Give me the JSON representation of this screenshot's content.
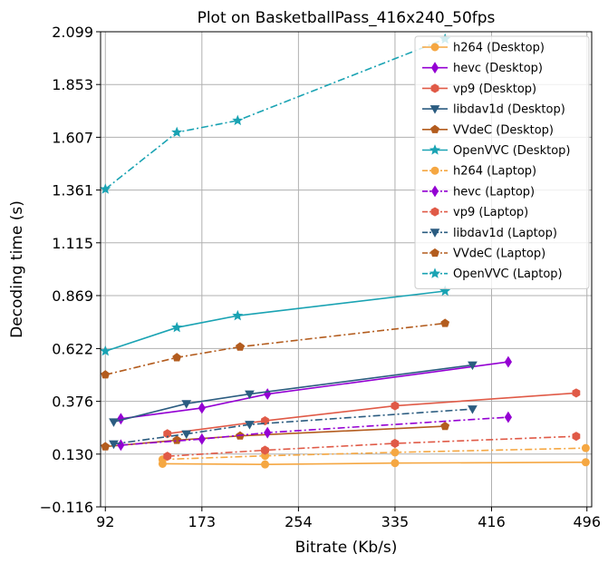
{
  "chart_data": {
    "type": "line",
    "title": "Plot on BasketballPass_416x240_50fps",
    "xlabel": "Bitrate (Kb/s)",
    "ylabel": "Decoding time (s)",
    "xlim": [
      88,
      500
    ],
    "ylim": [
      -0.116,
      2.099
    ],
    "xticks": [
      92,
      173,
      254,
      335,
      416,
      496
    ],
    "xtick_labels": [
      "92",
      "173",
      "254",
      "335",
      "416",
      "496"
    ],
    "yticks": [
      -0.116,
      0.13,
      0.376,
      0.622,
      0.869,
      1.115,
      1.361,
      1.607,
      1.853,
      2.099
    ],
    "ytick_labels": [
      "−0.116",
      "0.130",
      "0.376",
      "0.622",
      "0.869",
      "1.115",
      "1.361",
      "1.607",
      "1.853",
      "2.099"
    ],
    "grid": true,
    "legend_position": "top-right",
    "series": [
      {
        "name": "h264 (Desktop)",
        "color": "#f5a742",
        "marker": "circle",
        "dash": "solid",
        "x": [
          140,
          226,
          335,
          495
        ],
        "y": [
          0.085,
          0.082,
          0.088,
          0.092
        ]
      },
      {
        "name": "hevc (Desktop)",
        "color": "#9400d3",
        "marker": "diamond",
        "dash": "solid",
        "x": [
          105,
          173,
          228,
          430
        ],
        "y": [
          0.295,
          0.345,
          0.41,
          0.56
        ]
      },
      {
        "name": "vp9 (Desktop)",
        "color": "#e05a47",
        "marker": "hexagon",
        "dash": "solid",
        "x": [
          144,
          226,
          335,
          487
        ],
        "y": [
          0.225,
          0.285,
          0.355,
          0.415
        ]
      },
      {
        "name": "libdav1d (Desktop)",
        "color": "#2b5c80",
        "marker": "triangle-down",
        "dash": "solid",
        "x": [
          99,
          160,
          213,
          400
        ],
        "y": [
          0.28,
          0.365,
          0.41,
          0.545
        ]
      },
      {
        "name": "VVdeC (Desktop)",
        "color": "#b35c1e",
        "marker": "pentagon",
        "dash": "solid",
        "x": [
          92,
          152,
          205,
          377
        ],
        "y": [
          0.165,
          0.195,
          0.215,
          0.26
        ]
      },
      {
        "name": "OpenVVC (Desktop)",
        "color": "#1aa3b3",
        "marker": "star",
        "dash": "solid",
        "x": [
          92,
          152,
          203,
          377
        ],
        "y": [
          0.61,
          0.72,
          0.775,
          0.89
        ]
      },
      {
        "name": "h264 (Laptop)",
        "color": "#f5a742",
        "marker": "circle",
        "dash": "dashdot",
        "x": [
          140,
          226,
          335,
          495
        ],
        "y": [
          0.105,
          0.122,
          0.138,
          0.158
        ]
      },
      {
        "name": "hevc (Laptop)",
        "color": "#9400d3",
        "marker": "diamond",
        "dash": "dashdot",
        "x": [
          105,
          173,
          228,
          430
        ],
        "y": [
          0.172,
          0.2,
          0.23,
          0.302
        ]
      },
      {
        "name": "vp9 (Laptop)",
        "color": "#e05a47",
        "marker": "hexagon",
        "dash": "dashdot",
        "x": [
          144,
          226,
          335,
          487
        ],
        "y": [
          0.12,
          0.148,
          0.18,
          0.213
        ]
      },
      {
        "name": "libdav1d (Laptop)",
        "color": "#2b5c80",
        "marker": "triangle-down",
        "dash": "dashdot",
        "x": [
          99,
          160,
          213,
          400
        ],
        "y": [
          0.177,
          0.224,
          0.268,
          0.34
        ]
      },
      {
        "name": "VVdeC (Laptop)",
        "color": "#b35c1e",
        "marker": "pentagon",
        "dash": "dashdot",
        "x": [
          92,
          152,
          205,
          377
        ],
        "y": [
          0.5,
          0.58,
          0.63,
          0.74
        ]
      },
      {
        "name": "OpenVVC (Laptop)",
        "color": "#1aa3b3",
        "marker": "star",
        "dash": "dashdot",
        "x": [
          92,
          152,
          203,
          377
        ],
        "y": [
          1.365,
          1.63,
          1.685,
          2.065
        ]
      }
    ]
  }
}
